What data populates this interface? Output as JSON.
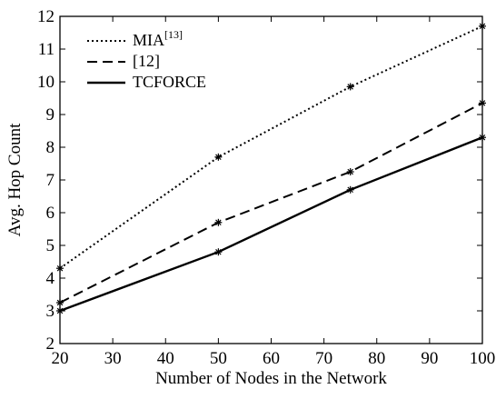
{
  "chart_data": {
    "type": "line",
    "xlabel": "Number of Nodes in the Network",
    "ylabel": "Avg. Hop Count",
    "xlim": [
      20,
      100
    ],
    "ylim": [
      2,
      12
    ],
    "x_ticks": [
      20,
      30,
      40,
      50,
      60,
      70,
      80,
      90,
      100
    ],
    "y_ticks": [
      2,
      3,
      4,
      5,
      6,
      7,
      8,
      9,
      10,
      11,
      12
    ],
    "grid": false,
    "legend_position": "top-left",
    "marker": "asterisk",
    "series": [
      {
        "name": "MIA",
        "name_superscript": "[13]",
        "line_style": "dotted",
        "x": [
          20,
          50,
          75,
          100
        ],
        "y": [
          4.3,
          7.7,
          9.85,
          11.7
        ]
      },
      {
        "name": "[12]",
        "line_style": "dashed",
        "x": [
          20,
          50,
          75,
          100
        ],
        "y": [
          3.25,
          5.7,
          7.25,
          9.35
        ]
      },
      {
        "name": "TCFORCE",
        "line_style": "solid",
        "x": [
          20,
          50,
          75,
          100
        ],
        "y": [
          3.0,
          4.8,
          6.7,
          8.3
        ]
      }
    ]
  }
}
